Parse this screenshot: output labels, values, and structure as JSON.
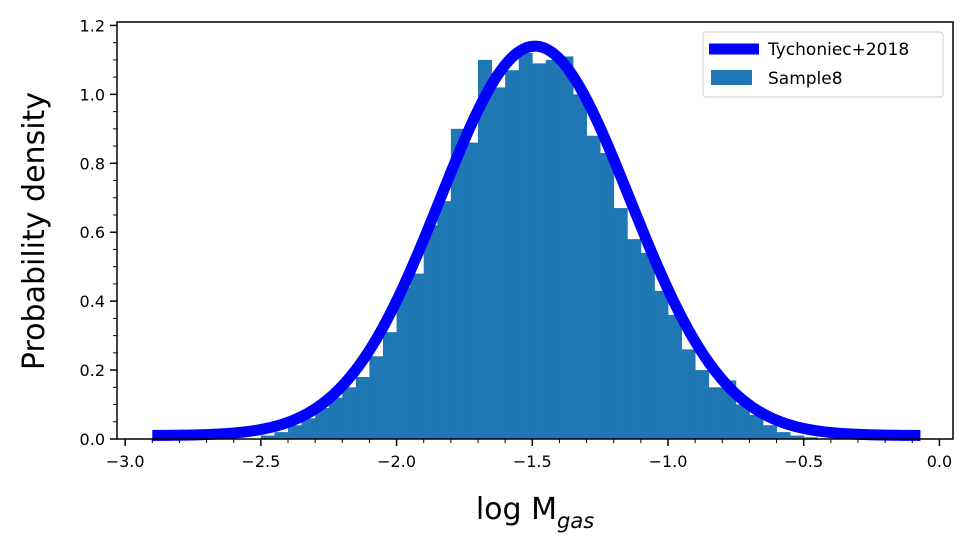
{
  "chart_data": {
    "type": "bar",
    "xlabel_main": "log M",
    "xlabel_sub": "gas",
    "ylabel": "Probability density",
    "xlim": [
      -3.03,
      0.05
    ],
    "ylim": [
      0.0,
      1.21
    ],
    "xticks": [
      -3.0,
      -2.5,
      -2.0,
      -1.5,
      -1.0,
      -0.5,
      0.0
    ],
    "xtick_labels": [
      "−3.0",
      "−2.5",
      "−2.0",
      "−1.5",
      "−1.0",
      "−0.5",
      "0.0"
    ],
    "yticks": [
      0.0,
      0.2,
      0.4,
      0.6,
      0.8,
      1.0,
      1.2
    ],
    "ytick_labels": [
      "0.0",
      "0.2",
      "0.4",
      "0.6",
      "0.8",
      "1.0",
      "1.2"
    ],
    "legend_position": "top-right",
    "histogram": {
      "name": "Sample8",
      "color": "#1f77b4",
      "bin_edges": [
        -2.5,
        -2.45,
        -2.4,
        -2.35,
        -2.3,
        -2.25,
        -2.2,
        -2.15,
        -2.1,
        -2.05,
        -2.0,
        -1.95,
        -1.9,
        -1.85,
        -1.8,
        -1.75,
        -1.7,
        -1.65,
        -1.6,
        -1.55,
        -1.5,
        -1.45,
        -1.4,
        -1.35,
        -1.3,
        -1.25,
        -1.2,
        -1.15,
        -1.1,
        -1.05,
        -1.0,
        -0.95,
        -0.9,
        -0.85,
        -0.8,
        -0.75,
        -0.7,
        -0.65,
        -0.6,
        -0.55,
        -0.5,
        -0.45
      ],
      "density": [
        0.01,
        0.02,
        0.04,
        0.06,
        0.09,
        0.12,
        0.15,
        0.18,
        0.24,
        0.31,
        0.44,
        0.48,
        0.62,
        0.69,
        0.9,
        0.86,
        1.1,
        1.02,
        1.07,
        1.12,
        1.09,
        1.1,
        1.11,
        1.0,
        0.88,
        0.83,
        0.67,
        0.58,
        0.54,
        0.43,
        0.36,
        0.26,
        0.2,
        0.15,
        0.17,
        0.1,
        0.07,
        0.04,
        0.02,
        0.01,
        0.005
      ]
    },
    "curve": {
      "name": "Tychoniec+2018",
      "color": "#0000ff",
      "type": "gaussian",
      "x_range": [
        -2.9,
        -0.07
      ],
      "mean": -1.49,
      "sigma": 0.35,
      "peak_density": 1.14,
      "baseline": 0.01
    }
  }
}
